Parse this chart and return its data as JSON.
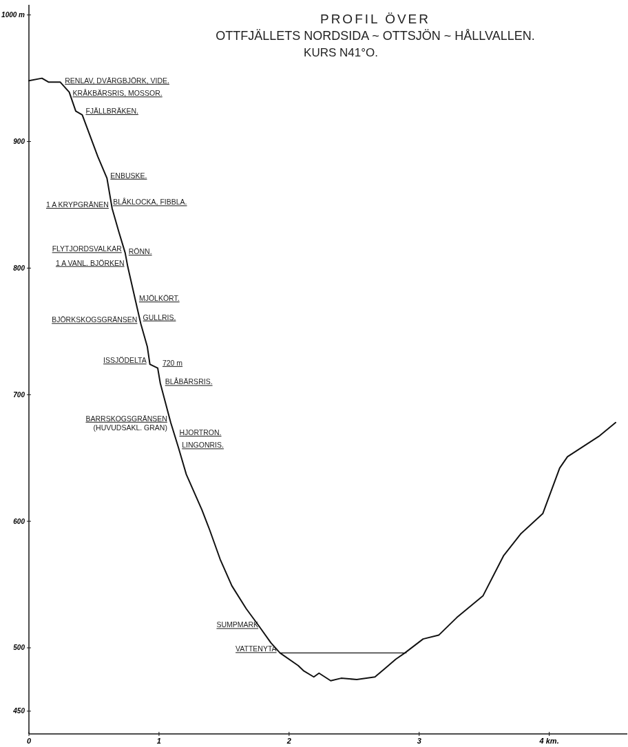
{
  "chart_data": {
    "type": "line",
    "title": "PROFIL ÖVER\nOTTFJÄLLETS NORDSIDA ~ OTTSJÖN ~ HÅLLVALLEN.",
    "subtitle": "KURS N41°O.",
    "xlim": [
      0,
      4.6
    ],
    "ylim": [
      432,
      1008
    ],
    "xticks": [
      0,
      1,
      2,
      3,
      {
        "value": 4,
        "label": "4 km."
      }
    ],
    "yticks": [
      450,
      500,
      600,
      700,
      800,
      900,
      {
        "value": 1000,
        "label": "1000 m"
      }
    ],
    "grid": false,
    "series": [
      {
        "type": "line",
        "color": "#111111",
        "x": [
          0,
          0.1,
          0.15,
          0.24,
          0.31,
          0.36,
          0.41,
          0.53,
          0.6,
          0.64,
          0.69,
          0.74,
          0.76,
          0.82,
          0.86,
          0.91,
          0.93,
          0.99,
          1.01,
          1.09,
          1.15,
          1.21,
          1.33,
          1.39,
          1.47,
          1.56,
          1.67,
          1.77,
          1.86,
          1.93,
          2.07,
          2.11,
          2.19,
          2.23,
          2.32,
          2.4,
          2.52,
          2.66,
          2.74,
          2.82,
          2.89,
          3.03,
          3.15,
          3.29,
          3.49,
          3.65,
          3.78,
          3.95,
          4.08,
          4.14,
          4.38,
          4.51
        ],
        "values": [
          948,
          950,
          947,
          947,
          939,
          924,
          921,
          888,
          871,
          847,
          829,
          812,
          801,
          774,
          756,
          738,
          724,
          721,
          709,
          678,
          658,
          637,
          609,
          593,
          570,
          549,
          531,
          517,
          504,
          496,
          486,
          482,
          477,
          480,
          474,
          476,
          475,
          477,
          484,
          491,
          496,
          507,
          510,
          524,
          541,
          573,
          590,
          606,
          642,
          651,
          667,
          678
        ]
      },
      {
        "type": "line",
        "color": "#111111",
        "x": [
          1.93,
          2.9
        ],
        "values": [
          496,
          496
        ]
      }
    ],
    "annotations": [
      {
        "text": "RENLAV, DVÄRGBJÖRK, VIDE.",
        "x": 0.25,
        "y": 945
      },
      {
        "text": "KRÅKBÄRSRIS, MOSSOR.",
        "x": 0.31,
        "y": 935
      },
      {
        "text": "FJÄLLBRÄKEN.",
        "x": 0.41,
        "y": 921
      },
      {
        "text": "ENBUSKE.",
        "x": 0.6,
        "y": 870
      },
      {
        "text": "BLÅKLOCKA, FIBBLA.",
        "x": 0.62,
        "y": 849
      },
      {
        "text": "1 A KRYPGRÄNEN",
        "x": 0.64,
        "y": 847
      },
      {
        "text": "FLYTJORDSVALKAR",
        "x": 0.74,
        "y": 812
      },
      {
        "text": "RÖNN.",
        "x": 0.74,
        "y": 810
      },
      {
        "text": "1 A VANL. BJÖRKEN",
        "x": 0.76,
        "y": 801
      },
      {
        "text": "MJÖLKÖRT.",
        "x": 0.82,
        "y": 773
      },
      {
        "text": "BJÖRKSKOGSGRÄNSEN",
        "x": 0.86,
        "y": 756
      },
      {
        "text": "GULLRIS.",
        "x": 0.85,
        "y": 758
      },
      {
        "text": "ISSJÖDELTA",
        "x": 0.93,
        "y": 724
      },
      {
        "text": "720 m",
        "x": 1,
        "y": 722
      },
      {
        "text": "BLÅBÄRSRIS.",
        "x": 1.02,
        "y": 707
      },
      {
        "text": "BARRSKOGSGRÄNSEN\n(HUVUDSAKL. GRAN)",
        "x": 1.09,
        "y": 678
      },
      {
        "text": "HJORTRON.",
        "x": 1.13,
        "y": 667
      },
      {
        "text": "LINGONRIS.",
        "x": 1.15,
        "y": 657
      },
      {
        "text": "SUMPMARK",
        "x": 1.79,
        "y": 515
      },
      {
        "text": "VATTENYTA",
        "x": 1.93,
        "y": 496
      }
    ]
  }
}
